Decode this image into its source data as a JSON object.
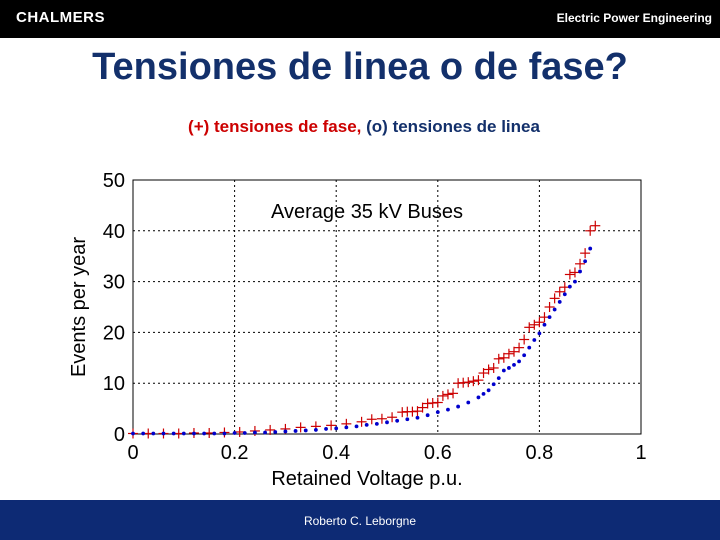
{
  "header": {
    "logo": "CHALMERS",
    "department": "Electric Power Engineering"
  },
  "slide": {
    "title": "Tensiones de linea o de fase?",
    "subtitle_part1": "(+) tensiones de fase,",
    "subtitle_part2": "(o) tensiones de linea"
  },
  "footer": {
    "author": "Roberto C. Leborgne"
  },
  "colors": {
    "accent": "#13306b",
    "footer_bg": "#0d2a74",
    "phase_series": "#cc0000",
    "line_series": "#0000cc"
  },
  "chart_data": {
    "type": "scatter",
    "title": "Average 35 kV Buses",
    "xlabel": "Retained Voltage p.u.",
    "ylabel": "Events per year",
    "xlim": [
      0,
      1
    ],
    "ylim": [
      0,
      50
    ],
    "xticks": [
      0,
      0.2,
      0.4,
      0.6,
      0.8,
      1
    ],
    "xtick_labels": [
      "0",
      "0.2",
      "0.4",
      "0.6",
      "0.8",
      "1"
    ],
    "yticks": [
      0,
      10,
      20,
      30,
      40,
      50
    ],
    "ytick_labels": [
      "0",
      "10",
      "20",
      "30",
      "40",
      "50"
    ],
    "grid": true,
    "series": [
      {
        "marker": "plus",
        "color": "#cc0000",
        "x": [
          0.0,
          0.03,
          0.06,
          0.09,
          0.12,
          0.15,
          0.18,
          0.21,
          0.24,
          0.27,
          0.3,
          0.33,
          0.36,
          0.39,
          0.42,
          0.45,
          0.47,
          0.49,
          0.51,
          0.53,
          0.54,
          0.55,
          0.56,
          0.57,
          0.58,
          0.59,
          0.6,
          0.61,
          0.62,
          0.63,
          0.64,
          0.65,
          0.66,
          0.67,
          0.68,
          0.69,
          0.7,
          0.71,
          0.72,
          0.73,
          0.74,
          0.75,
          0.76,
          0.77,
          0.78,
          0.79,
          0.8,
          0.81,
          0.82,
          0.83,
          0.84,
          0.85,
          0.86,
          0.87,
          0.88,
          0.89,
          0.9,
          0.91
        ],
        "y": [
          0.1,
          0.1,
          0.1,
          0.1,
          0.2,
          0.2,
          0.3,
          0.4,
          0.6,
          0.8,
          1.0,
          1.3,
          1.5,
          1.7,
          2.0,
          2.4,
          2.9,
          3.0,
          3.3,
          4.3,
          4.4,
          4.4,
          4.5,
          5.2,
          6.0,
          6.1,
          6.2,
          7.5,
          7.8,
          8.0,
          10.0,
          10.1,
          10.2,
          10.4,
          10.6,
          12.0,
          12.7,
          13.0,
          14.8,
          15.0,
          15.8,
          16.2,
          17.0,
          18.6,
          21.0,
          21.5,
          22.0,
          23.0,
          25.0,
          26.7,
          28.0,
          28.9,
          31.4,
          31.8,
          33.5,
          35.6,
          40.0,
          41.0
        ]
      },
      {
        "marker": "dot",
        "color": "#0000cc",
        "x": [
          0.0,
          0.02,
          0.04,
          0.06,
          0.08,
          0.1,
          0.12,
          0.14,
          0.16,
          0.18,
          0.2,
          0.22,
          0.24,
          0.26,
          0.28,
          0.3,
          0.32,
          0.34,
          0.36,
          0.38,
          0.4,
          0.42,
          0.44,
          0.46,
          0.48,
          0.5,
          0.52,
          0.54,
          0.56,
          0.58,
          0.6,
          0.62,
          0.64,
          0.66,
          0.68,
          0.69,
          0.7,
          0.71,
          0.72,
          0.73,
          0.74,
          0.75,
          0.76,
          0.77,
          0.78,
          0.79,
          0.8,
          0.81,
          0.82,
          0.83,
          0.84,
          0.85,
          0.86,
          0.87,
          0.88,
          0.89,
          0.9
        ],
        "y": [
          0.1,
          0.1,
          0.1,
          0.1,
          0.1,
          0.1,
          0.1,
          0.1,
          0.1,
          0.1,
          0.2,
          0.2,
          0.3,
          0.3,
          0.4,
          0.5,
          0.6,
          0.7,
          0.8,
          1.0,
          1.1,
          1.3,
          1.5,
          1.8,
          2.0,
          2.3,
          2.6,
          2.9,
          3.2,
          3.7,
          4.3,
          4.8,
          5.4,
          6.2,
          7.2,
          7.9,
          8.6,
          9.8,
          11.0,
          12.5,
          13.0,
          13.6,
          14.3,
          15.5,
          17.0,
          18.5,
          19.8,
          21.5,
          23.0,
          24.5,
          26.0,
          27.5,
          29.0,
          30.0,
          32.0,
          34.0,
          36.5
        ]
      }
    ]
  }
}
